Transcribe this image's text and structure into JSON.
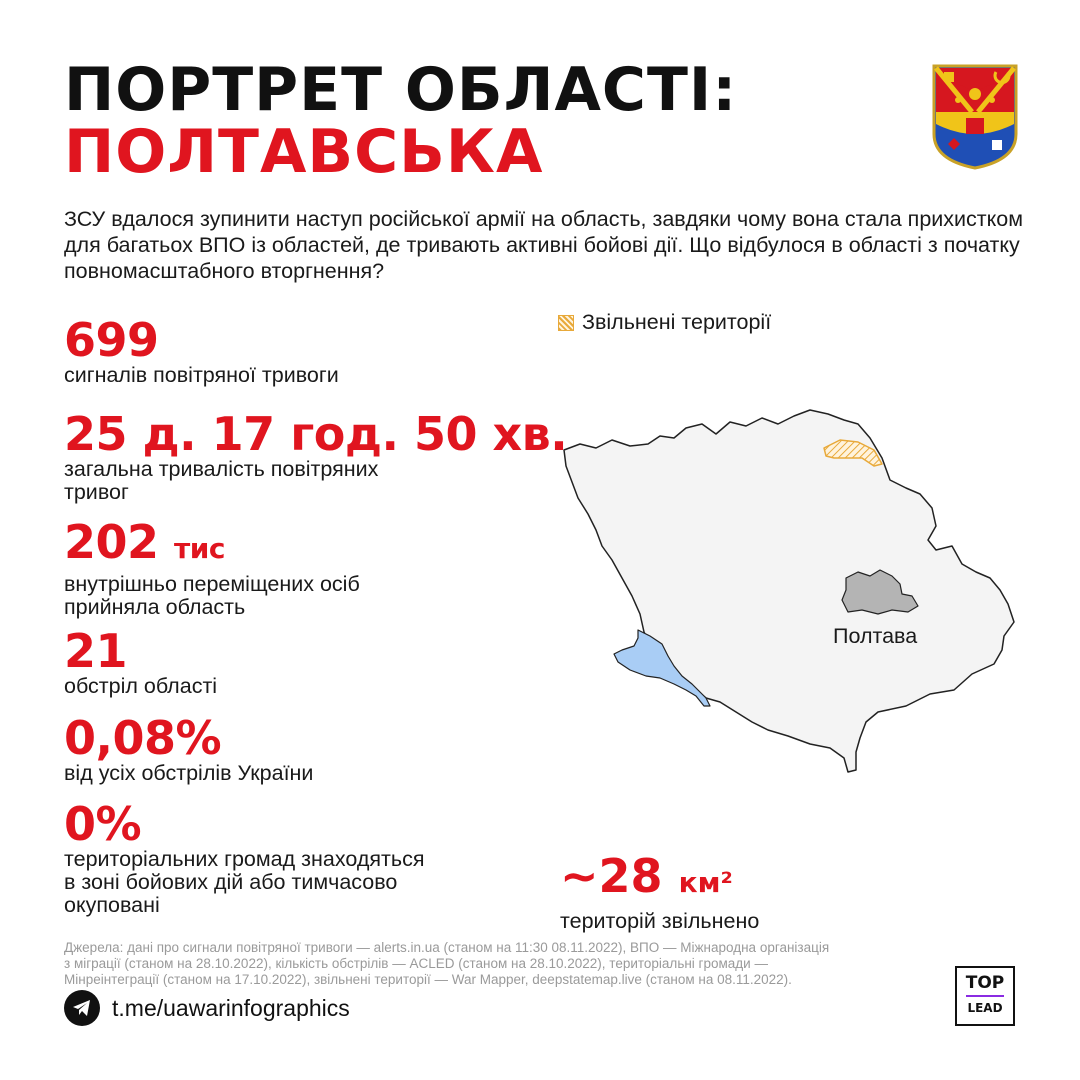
{
  "header": {
    "title_line1": "ПОРТРЕТ ОБЛАСТІ:",
    "title_line2": "ПОЛТАВСЬКА",
    "coat_of_arms": "poltava-coat-of-arms-icon"
  },
  "intro": "ЗСУ вдалося зупинити наступ російської армії на область, завдяки чому вона стала прихистком для багатьох ВПО із областей, де тривають активні бойові дії. Що відбулося в області з початку повномасштабного вторгнення?",
  "stats": [
    {
      "value": "699",
      "unit": "",
      "label_lines": [
        "сигналів повітряної тривоги"
      ]
    },
    {
      "value": "25 д. 17 год. 50 хв.",
      "unit": "",
      "label_lines": [
        "загальна тривалість повітряних",
        "тривог"
      ]
    },
    {
      "value": "202",
      "unit": "тис",
      "label_lines": [
        "внутрішньо переміщених осіб",
        "прийняла область"
      ]
    },
    {
      "value": "21",
      "unit": "",
      "label_lines": [
        "обстріл області"
      ]
    },
    {
      "value": "0,08%",
      "unit": "",
      "label_lines": [
        "від усіх обстрілів України"
      ]
    },
    {
      "value": "0%",
      "unit": "",
      "label_lines": [
        "територіальних громад знаходяться",
        "в зоні бойових дій або тимчасово",
        "окуповані"
      ]
    }
  ],
  "map": {
    "legend_label": "Звільнені території",
    "city_label": "Полтава",
    "colors": {
      "region_fill": "#f4f4f4",
      "region_stroke": "#222222",
      "city_fill": "#b4b4b4",
      "water_fill": "#a9cdf5",
      "liberated": "#e8a93a"
    }
  },
  "liberated_stat": {
    "value": "~28",
    "unit": "км²",
    "label": "територій звільнено"
  },
  "footer": {
    "sources_lines": [
      "Джерела: дані про сигнали повітряної тривоги — alerts.in.ua (станом на 11:30 08.11.2022), ВПО — Міжнародна організація",
      "з міграції (станом на 28.10.2022), кількість обстрілів — ACLED (станом на 28.10.2022), територіальні громади —",
      "Мінреінтеграції (станом на 17.10.2022), звільнені території — War Mapper, deepstatemap.live (станом на 08.11.2022)."
    ],
    "telegram_icon": "telegram-icon",
    "telegram_link": "t.me/uawarinfographics",
    "logo_top": "TOP",
    "logo_bottom": "LEAD"
  },
  "accent_color": "#e0151f"
}
